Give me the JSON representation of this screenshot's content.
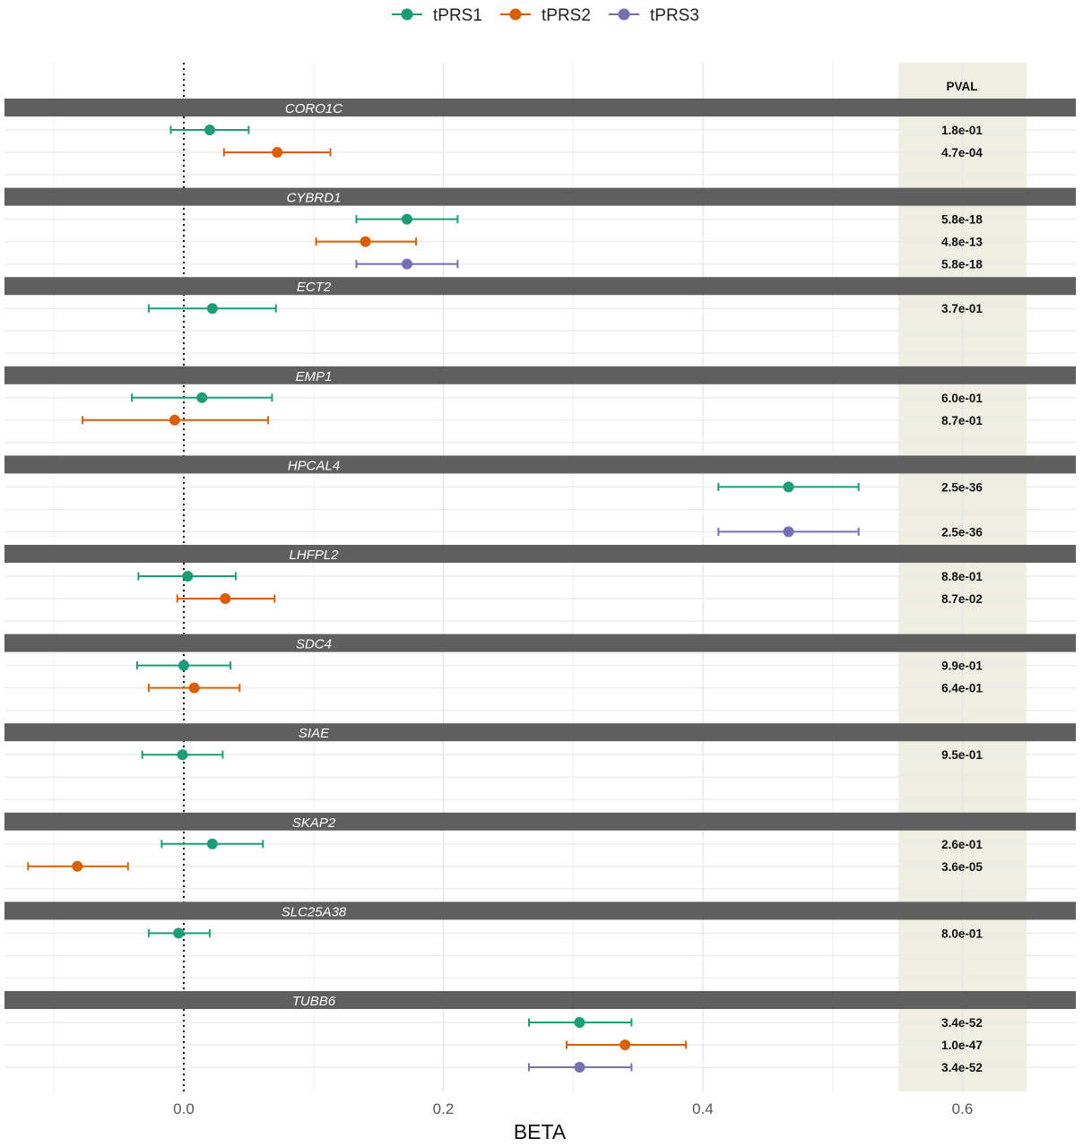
{
  "chart_data": {
    "type": "forest",
    "xlabel": "BETA",
    "xlim": [
      -0.14,
      0.69
    ],
    "xticks": [
      0.0,
      0.2,
      0.4,
      0.6
    ],
    "xtick_labels": [
      "0.0",
      "0.2",
      "0.4",
      "0.6"
    ],
    "reference_line": 0.0,
    "legend": {
      "position": "top",
      "entries": [
        "tPRS1",
        "tPRS2",
        "tPRS3"
      ]
    },
    "series_colors": {
      "tPRS1": "#1b9e77",
      "tPRS2": "#d95f02",
      "tPRS3": "#7570b3"
    },
    "pval_column_title": "PVAL",
    "pval_panel_color": "#eeeee3",
    "strip_color": "#5f5f5f",
    "groups": [
      {
        "gene": "CORO1C",
        "rows": [
          {
            "series": "tPRS1",
            "beta": 0.02,
            "lo": -0.01,
            "hi": 0.05,
            "pval": "1.8e-01"
          },
          {
            "series": "tPRS2",
            "beta": 0.072,
            "lo": 0.031,
            "hi": 0.113,
            "pval": "4.7e-04"
          },
          null
        ]
      },
      {
        "gene": "CYBRD1",
        "rows": [
          {
            "series": "tPRS1",
            "beta": 0.172,
            "lo": 0.133,
            "hi": 0.211,
            "pval": "5.8e-18"
          },
          {
            "series": "tPRS2",
            "beta": 0.14,
            "lo": 0.102,
            "hi": 0.179,
            "pval": "4.8e-13"
          },
          {
            "series": "tPRS3",
            "beta": 0.172,
            "lo": 0.133,
            "hi": 0.211,
            "pval": "5.8e-18"
          }
        ]
      },
      {
        "gene": "ECT2",
        "rows": [
          {
            "series": "tPRS1",
            "beta": 0.022,
            "lo": -0.027,
            "hi": 0.071,
            "pval": "3.7e-01"
          },
          null,
          null
        ]
      },
      {
        "gene": "EMP1",
        "rows": [
          {
            "series": "tPRS1",
            "beta": 0.014,
            "lo": -0.04,
            "hi": 0.068,
            "pval": "6.0e-01"
          },
          {
            "series": "tPRS2",
            "beta": -0.007,
            "lo": -0.078,
            "hi": 0.065,
            "pval": "8.7e-01"
          },
          null
        ]
      },
      {
        "gene": "HPCAL4",
        "rows": [
          {
            "series": "tPRS1",
            "beta": 0.466,
            "lo": 0.412,
            "hi": 0.52,
            "pval": "2.5e-36"
          },
          null,
          {
            "series": "tPRS3",
            "beta": 0.466,
            "lo": 0.412,
            "hi": 0.52,
            "pval": "2.5e-36"
          }
        ]
      },
      {
        "gene": "LHFPL2",
        "rows": [
          {
            "series": "tPRS1",
            "beta": 0.003,
            "lo": -0.035,
            "hi": 0.04,
            "pval": "8.8e-01"
          },
          {
            "series": "tPRS2",
            "beta": 0.032,
            "lo": -0.005,
            "hi": 0.07,
            "pval": "8.7e-02"
          },
          null
        ]
      },
      {
        "gene": "SDC4",
        "rows": [
          {
            "series": "tPRS1",
            "beta": 0.0,
            "lo": -0.036,
            "hi": 0.036,
            "pval": "9.9e-01"
          },
          {
            "series": "tPRS2",
            "beta": 0.008,
            "lo": -0.027,
            "hi": 0.043,
            "pval": "6.4e-01"
          },
          null
        ]
      },
      {
        "gene": "SIAE",
        "rows": [
          {
            "series": "tPRS1",
            "beta": -0.001,
            "lo": -0.032,
            "hi": 0.03,
            "pval": "9.5e-01"
          },
          null,
          null
        ]
      },
      {
        "gene": "SKAP2",
        "rows": [
          {
            "series": "tPRS1",
            "beta": 0.022,
            "lo": -0.017,
            "hi": 0.061,
            "pval": "2.6e-01"
          },
          {
            "series": "tPRS2",
            "beta": -0.082,
            "lo": -0.12,
            "hi": -0.043,
            "pval": "3.6e-05"
          },
          null
        ]
      },
      {
        "gene": "SLC25A38",
        "rows": [
          {
            "series": "tPRS1",
            "beta": -0.004,
            "lo": -0.027,
            "hi": 0.02,
            "pval": "8.0e-01"
          },
          null,
          null
        ]
      },
      {
        "gene": "TUBB6",
        "rows": [
          {
            "series": "tPRS1",
            "beta": 0.305,
            "lo": 0.266,
            "hi": 0.345,
            "pval": "3.4e-52"
          },
          {
            "series": "tPRS2",
            "beta": 0.34,
            "lo": 0.295,
            "hi": 0.387,
            "pval": "1.0e-47"
          },
          {
            "series": "tPRS3",
            "beta": 0.305,
            "lo": 0.266,
            "hi": 0.345,
            "pval": "3.4e-52"
          }
        ]
      }
    ]
  }
}
